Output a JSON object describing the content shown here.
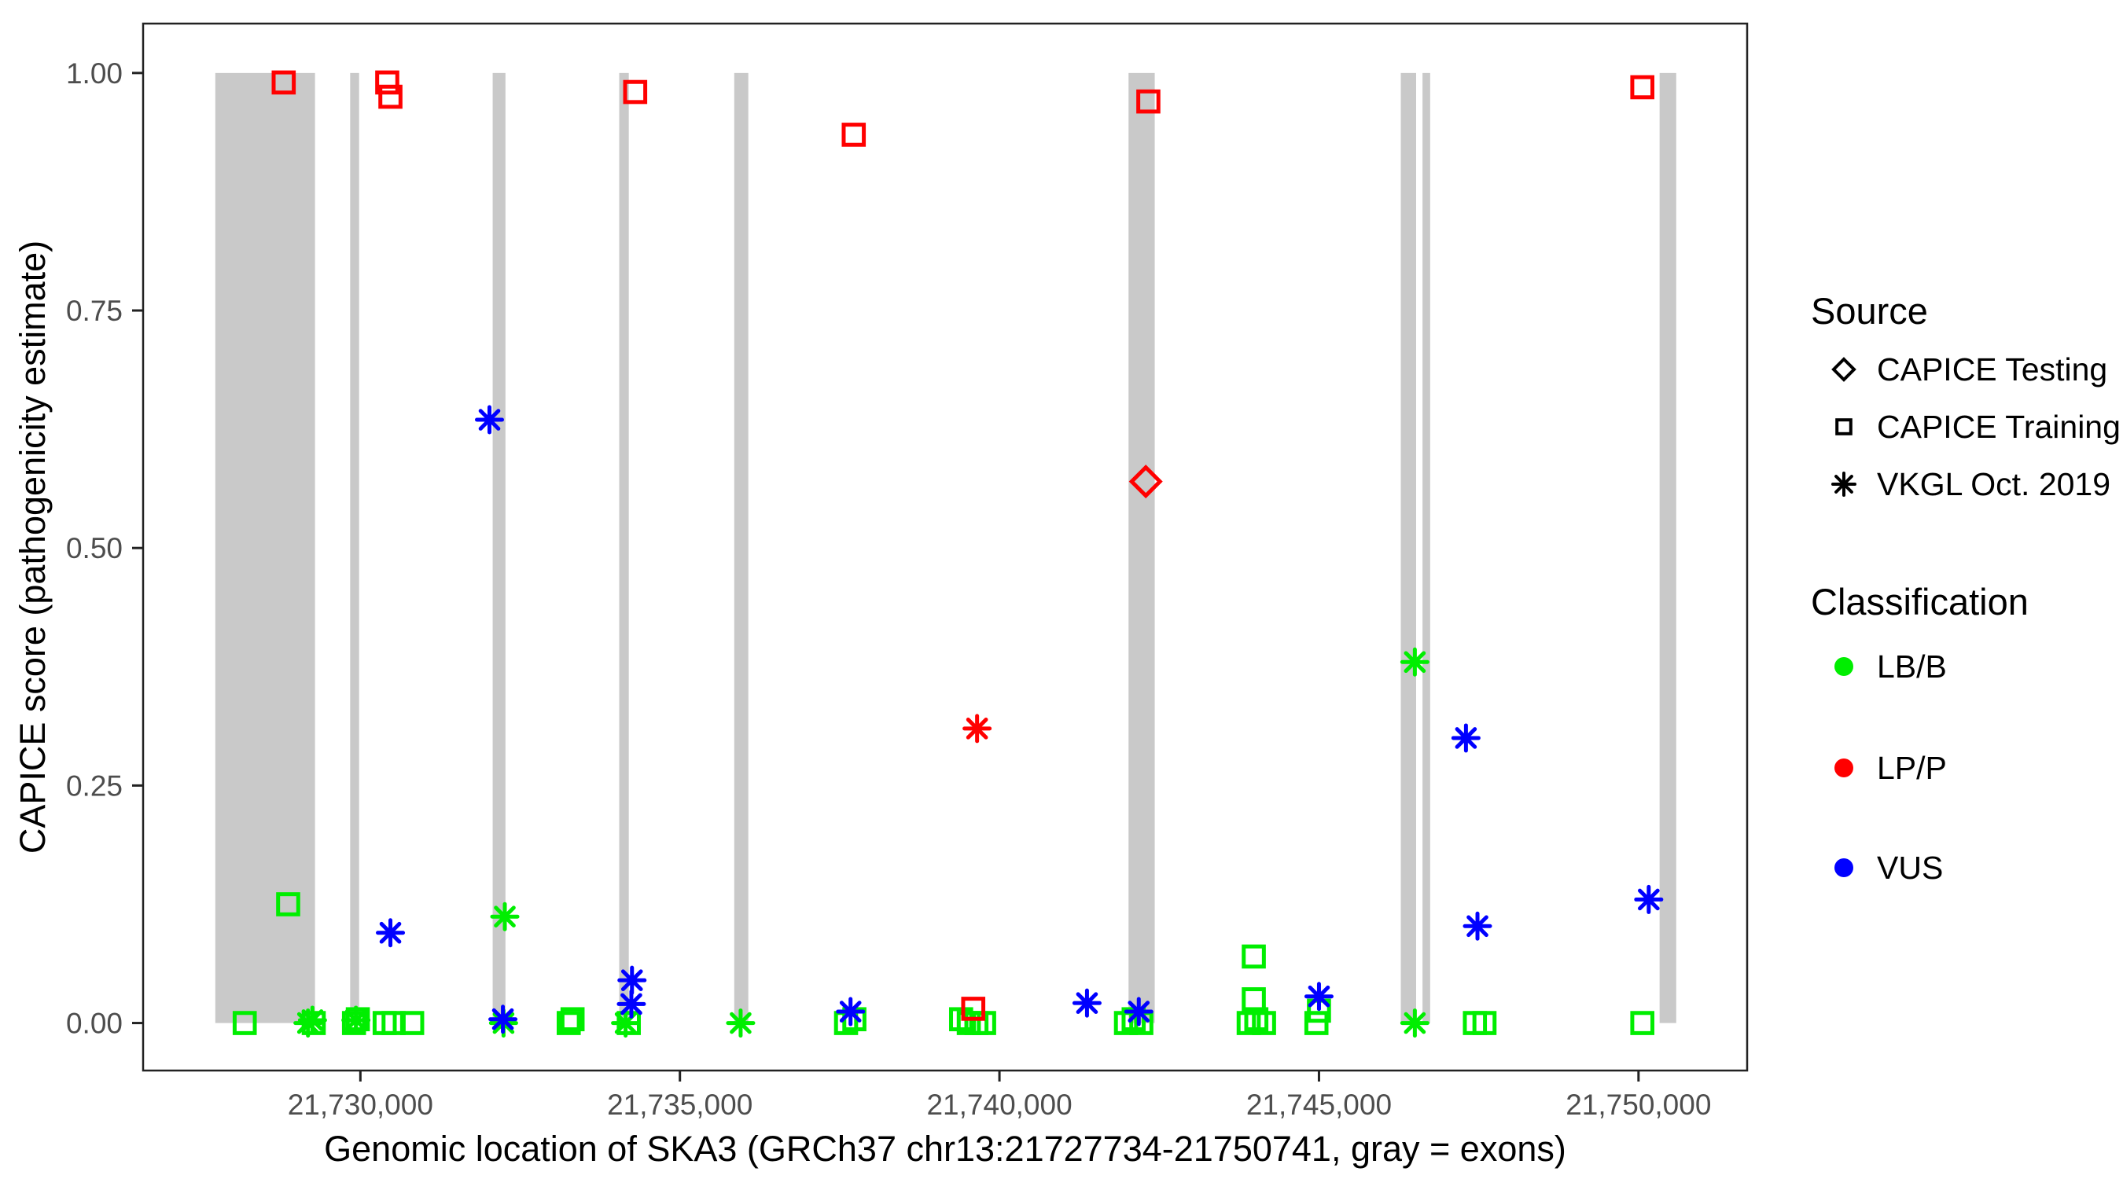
{
  "chart_data": {
    "type": "scatter",
    "x_label": "Genomic location of SKA3 (GRCh37 chr13:21727734-21750741, gray = exons)",
    "y_label": "CAPICE score (pathogenicity estimate)",
    "x_range": [
      21726600,
      21751700
    ],
    "y_range": [
      -0.05,
      1.052
    ],
    "grid": "off",
    "x_ticks": [
      {
        "v": 21730000,
        "label": "21,730,000"
      },
      {
        "v": 21735000,
        "label": "21,735,000"
      },
      {
        "v": 21740000,
        "label": "21,740,000"
      },
      {
        "v": 21745000,
        "label": "21,745,000"
      },
      {
        "v": 21750000,
        "label": "21,750,000"
      }
    ],
    "y_ticks": [
      {
        "v": 0.0,
        "label": "0.00"
      },
      {
        "v": 0.25,
        "label": "0.25"
      },
      {
        "v": 0.5,
        "label": "0.50"
      },
      {
        "v": 0.75,
        "label": "0.75"
      },
      {
        "v": 1.0,
        "label": "1.00"
      }
    ],
    "exon_color": "#C9C9C9",
    "exons": [
      [
        21727730,
        21729290
      ],
      [
        21729840,
        21729980
      ],
      [
        21732070,
        21732270
      ],
      [
        21734050,
        21734200
      ],
      [
        21735850,
        21736070
      ],
      [
        21742020,
        21742430
      ],
      [
        21746280,
        21746520
      ],
      [
        21746620,
        21746740
      ],
      [
        21750330,
        21750590
      ]
    ],
    "colors": {
      "LB/B": "#00EE00",
      "LP/P": "#FF0000",
      "VUS": "#0000FF"
    },
    "marker_map": {
      "CAPICE Testing": "diamond",
      "CAPICE Training": "square",
      "VKGL Oct. 2019": "asterisk"
    },
    "points": [
      {
        "pos": 21728190,
        "score": 0.0,
        "source": "CAPICE Training",
        "cls": "LB/B"
      },
      {
        "pos": 21728870,
        "score": 0.125,
        "source": "CAPICE Training",
        "cls": "LB/B"
      },
      {
        "pos": 21729270,
        "score": 0.0,
        "source": "CAPICE Training",
        "cls": "LB/B"
      },
      {
        "pos": 21729900,
        "score": 0.0,
        "source": "CAPICE Training",
        "cls": "LB/B"
      },
      {
        "pos": 21729960,
        "score": 0.004,
        "source": "CAPICE Training",
        "cls": "LB/B"
      },
      {
        "pos": 21730380,
        "score": 0.0,
        "source": "CAPICE Training",
        "cls": "LB/B"
      },
      {
        "pos": 21730520,
        "score": 0.0,
        "source": "CAPICE Training",
        "cls": "LB/B"
      },
      {
        "pos": 21730810,
        "score": 0.0,
        "source": "CAPICE Training",
        "cls": "LB/B"
      },
      {
        "pos": 21733260,
        "score": 0.0,
        "source": "CAPICE Training",
        "cls": "LB/B"
      },
      {
        "pos": 21733320,
        "score": 0.004,
        "source": "CAPICE Training",
        "cls": "LB/B"
      },
      {
        "pos": 21734200,
        "score": 0.0,
        "source": "CAPICE Training",
        "cls": "LB/B"
      },
      {
        "pos": 21737600,
        "score": 0.0,
        "source": "CAPICE Training",
        "cls": "LB/B"
      },
      {
        "pos": 21737730,
        "score": 0.004,
        "source": "CAPICE Training",
        "cls": "LB/B"
      },
      {
        "pos": 21739400,
        "score": 0.004,
        "source": "CAPICE Training",
        "cls": "LB/B"
      },
      {
        "pos": 21739520,
        "score": 0.0,
        "source": "CAPICE Training",
        "cls": "LB/B"
      },
      {
        "pos": 21739640,
        "score": 0.0,
        "source": "CAPICE Training",
        "cls": "LB/B"
      },
      {
        "pos": 21739760,
        "score": 0.0,
        "source": "CAPICE Training",
        "cls": "LB/B"
      },
      {
        "pos": 21741980,
        "score": 0.0,
        "source": "CAPICE Training",
        "cls": "LB/B"
      },
      {
        "pos": 21742100,
        "score": 0.004,
        "source": "CAPICE Training",
        "cls": "LB/B"
      },
      {
        "pos": 21742220,
        "score": 0.0,
        "source": "CAPICE Training",
        "cls": "LB/B"
      },
      {
        "pos": 21743900,
        "score": 0.0,
        "source": "CAPICE Training",
        "cls": "LB/B"
      },
      {
        "pos": 21744020,
        "score": 0.004,
        "source": "CAPICE Training",
        "cls": "LB/B"
      },
      {
        "pos": 21744140,
        "score": 0.0,
        "source": "CAPICE Training",
        "cls": "LB/B"
      },
      {
        "pos": 21743980,
        "score": 0.07,
        "source": "CAPICE Training",
        "cls": "LB/B"
      },
      {
        "pos": 21743980,
        "score": 0.025,
        "source": "CAPICE Training",
        "cls": "LB/B"
      },
      {
        "pos": 21744960,
        "score": 0.0,
        "source": "CAPICE Training",
        "cls": "LB/B"
      },
      {
        "pos": 21745000,
        "score": 0.013,
        "source": "CAPICE Training",
        "cls": "LB/B"
      },
      {
        "pos": 21747440,
        "score": 0.0,
        "source": "CAPICE Training",
        "cls": "LB/B"
      },
      {
        "pos": 21747590,
        "score": 0.0,
        "source": "CAPICE Training",
        "cls": "LB/B"
      },
      {
        "pos": 21750060,
        "score": 0.0,
        "source": "CAPICE Training",
        "cls": "LB/B"
      },
      {
        "pos": 21729180,
        "score": 0.0,
        "source": "VKGL Oct. 2019",
        "cls": "LB/B"
      },
      {
        "pos": 21729250,
        "score": 0.003,
        "source": "VKGL Oct. 2019",
        "cls": "LB/B"
      },
      {
        "pos": 21729930,
        "score": 0.003,
        "source": "VKGL Oct. 2019",
        "cls": "LB/B"
      },
      {
        "pos": 21732240,
        "score": 0.0,
        "source": "VKGL Oct. 2019",
        "cls": "LB/B"
      },
      {
        "pos": 21732260,
        "score": 0.112,
        "source": "VKGL Oct. 2019",
        "cls": "LB/B"
      },
      {
        "pos": 21734150,
        "score": 0.0,
        "source": "VKGL Oct. 2019",
        "cls": "LB/B"
      },
      {
        "pos": 21735950,
        "score": 0.0,
        "source": "VKGL Oct. 2019",
        "cls": "LB/B"
      },
      {
        "pos": 21746500,
        "score": 0.0,
        "source": "VKGL Oct. 2019",
        "cls": "LB/B"
      },
      {
        "pos": 21746500,
        "score": 0.38,
        "source": "VKGL Oct. 2019",
        "cls": "LB/B"
      },
      {
        "pos": 21730470,
        "score": 0.095,
        "source": "VKGL Oct. 2019",
        "cls": "VUS"
      },
      {
        "pos": 21732020,
        "score": 0.635,
        "source": "VKGL Oct. 2019",
        "cls": "VUS"
      },
      {
        "pos": 21732230,
        "score": 0.004,
        "source": "VKGL Oct. 2019",
        "cls": "VUS"
      },
      {
        "pos": 21734240,
        "score": 0.02,
        "source": "VKGL Oct. 2019",
        "cls": "VUS"
      },
      {
        "pos": 21734250,
        "score": 0.045,
        "source": "VKGL Oct. 2019",
        "cls": "VUS"
      },
      {
        "pos": 21737670,
        "score": 0.012,
        "source": "VKGL Oct. 2019",
        "cls": "VUS"
      },
      {
        "pos": 21741370,
        "score": 0.021,
        "source": "VKGL Oct. 2019",
        "cls": "VUS"
      },
      {
        "pos": 21742180,
        "score": 0.012,
        "source": "VKGL Oct. 2019",
        "cls": "VUS"
      },
      {
        "pos": 21745000,
        "score": 0.028,
        "source": "VKGL Oct. 2019",
        "cls": "VUS"
      },
      {
        "pos": 21747300,
        "score": 0.3,
        "source": "VKGL Oct. 2019",
        "cls": "VUS"
      },
      {
        "pos": 21747480,
        "score": 0.102,
        "source": "VKGL Oct. 2019",
        "cls": "VUS"
      },
      {
        "pos": 21750160,
        "score": 0.13,
        "source": "VKGL Oct. 2019",
        "cls": "VUS"
      },
      {
        "pos": 21728800,
        "score": 0.99,
        "source": "CAPICE Training",
        "cls": "LP/P"
      },
      {
        "pos": 21730420,
        "score": 0.99,
        "source": "CAPICE Training",
        "cls": "LP/P"
      },
      {
        "pos": 21730470,
        "score": 0.975,
        "source": "CAPICE Training",
        "cls": "LP/P"
      },
      {
        "pos": 21734300,
        "score": 0.98,
        "source": "CAPICE Training",
        "cls": "LP/P"
      },
      {
        "pos": 21737720,
        "score": 0.935,
        "source": "CAPICE Training",
        "cls": "LP/P"
      },
      {
        "pos": 21739590,
        "score": 0.015,
        "source": "CAPICE Training",
        "cls": "LP/P"
      },
      {
        "pos": 21742330,
        "score": 0.97,
        "source": "CAPICE Training",
        "cls": "LP/P"
      },
      {
        "pos": 21750060,
        "score": 0.985,
        "source": "CAPICE Training",
        "cls": "LP/P"
      },
      {
        "pos": 21739650,
        "score": 0.31,
        "source": "VKGL Oct. 2019",
        "cls": "LP/P"
      },
      {
        "pos": 21742290,
        "score": 0.57,
        "source": "CAPICE Testing",
        "cls": "LP/P"
      }
    ]
  },
  "legend": {
    "source": {
      "title": "Source",
      "items": [
        {
          "marker": "diamond",
          "color": "#000000",
          "label": "CAPICE Testing"
        },
        {
          "marker": "square",
          "color": "#000000",
          "label": "CAPICE Training"
        },
        {
          "marker": "asterisk",
          "color": "#000000",
          "label": "VKGL Oct. 2019"
        }
      ]
    },
    "classification": {
      "title": "Classification",
      "items": [
        {
          "marker": "circle",
          "color": "#00EE00",
          "label": "LB/B"
        },
        {
          "marker": "circle",
          "color": "#FF0000",
          "label": "LP/P"
        },
        {
          "marker": "circle",
          "color": "#0000FF",
          "label": "VUS"
        }
      ]
    }
  }
}
